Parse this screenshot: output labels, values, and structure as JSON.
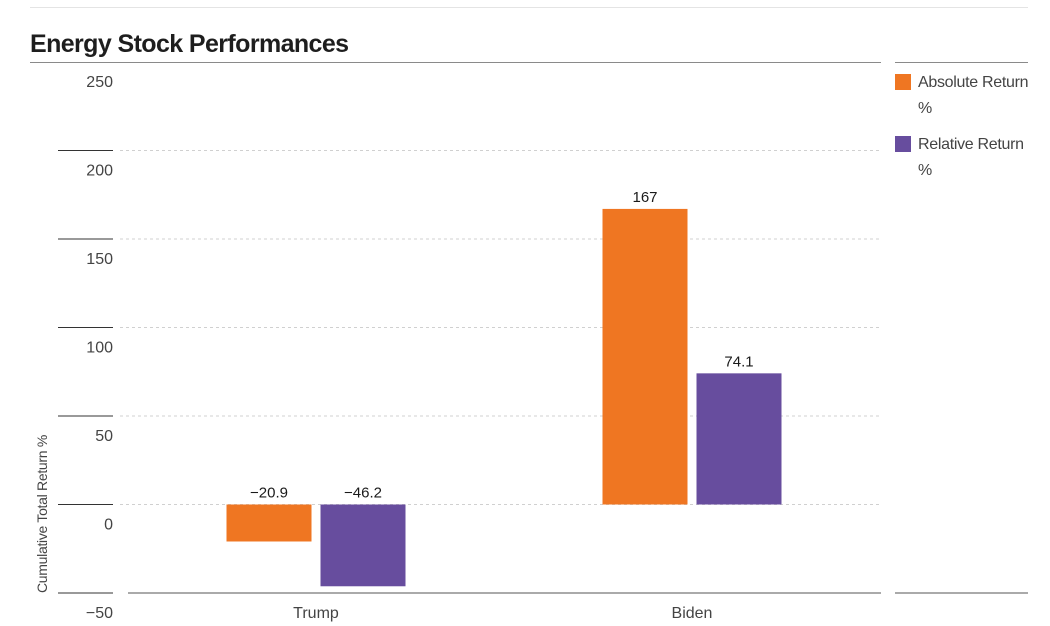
{
  "chart_data": {
    "type": "bar",
    "title": "Energy Stock Performances",
    "xlabel": "",
    "ylabel": "Cumulative Total Return %",
    "categories": [
      "Trump",
      "Biden"
    ],
    "series": [
      {
        "name": "Absolute Return %",
        "color": "#ef7622",
        "values": [
          -20.9,
          167
        ]
      },
      {
        "name": "Relative Return %",
        "color": "#674d9e",
        "values": [
          -46.2,
          74.1
        ]
      }
    ],
    "data_labels": [
      [
        "−20.9",
        "167"
      ],
      [
        "−46.2",
        "74.1"
      ]
    ],
    "yticks": [
      250,
      200,
      150,
      100,
      50,
      0,
      -50
    ],
    "ytick_labels": [
      "250",
      "200",
      "150",
      "100",
      "50",
      "0",
      "−50"
    ],
    "ylim": [
      -50,
      250
    ],
    "grid": true,
    "legend_position": "right"
  }
}
